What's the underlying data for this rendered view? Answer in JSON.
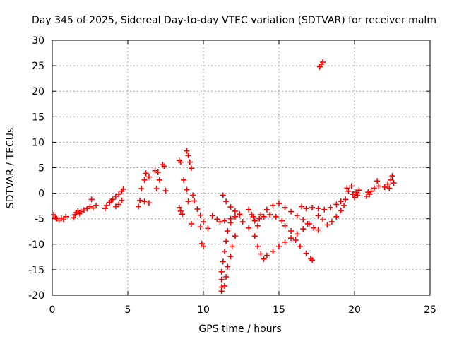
{
  "chart_data": {
    "type": "scatter",
    "title": "Day 345 of 2025, Sidereal Day-to-day VTEC variation (SDTVAR) for receiver malm",
    "xlabel": "GPS time / hours",
    "ylabel": "SDTVAR / TECUs",
    "xlim": [
      0,
      25
    ],
    "ylim": [
      -20,
      30
    ],
    "xticks": [
      0,
      5,
      10,
      15,
      20,
      25
    ],
    "yticks": [
      -20,
      -15,
      -10,
      -5,
      0,
      5,
      10,
      15,
      20,
      25,
      30
    ],
    "grid": true,
    "marker": "+",
    "color": "#ff0000",
    "series": [
      {
        "name": "SDTVAR",
        "points": [
          [
            0.1,
            -4.2
          ],
          [
            0.2,
            -4.8
          ],
          [
            0.3,
            -5.0
          ],
          [
            0.45,
            -5.3
          ],
          [
            0.6,
            -4.9
          ],
          [
            0.75,
            -5.2
          ],
          [
            0.9,
            -4.6
          ],
          [
            1.4,
            -4.8
          ],
          [
            1.5,
            -4.2
          ],
          [
            1.6,
            -3.8
          ],
          [
            1.7,
            -3.5
          ],
          [
            1.8,
            -4.0
          ],
          [
            1.9,
            -3.6
          ],
          [
            2.1,
            -3.3
          ],
          [
            2.3,
            -3.0
          ],
          [
            2.5,
            -2.6
          ],
          [
            2.7,
            -2.9
          ],
          [
            2.9,
            -2.4
          ],
          [
            2.6,
            -1.2
          ],
          [
            3.5,
            -3.0
          ],
          [
            3.6,
            -2.4
          ],
          [
            3.8,
            -1.8
          ],
          [
            4.0,
            -1.2
          ],
          [
            4.2,
            -0.6
          ],
          [
            4.4,
            -0.2
          ],
          [
            4.6,
            0.4
          ],
          [
            4.7,
            0.8
          ],
          [
            4.4,
            -2.2
          ],
          [
            4.6,
            -1.4
          ],
          [
            4.2,
            -2.6
          ],
          [
            3.9,
            -1.5
          ],
          [
            5.7,
            -2.6
          ],
          [
            5.8,
            -1.4
          ],
          [
            5.9,
            0.9
          ],
          [
            6.1,
            2.6
          ],
          [
            6.2,
            3.9
          ],
          [
            6.4,
            3.2
          ],
          [
            6.1,
            -1.6
          ],
          [
            6.4,
            -1.9
          ],
          [
            6.8,
            4.4
          ],
          [
            7.0,
            4.1
          ],
          [
            7.1,
            2.6
          ],
          [
            6.9,
            0.9
          ],
          [
            7.3,
            5.6
          ],
          [
            7.4,
            5.3
          ],
          [
            7.5,
            0.5
          ],
          [
            8.4,
            6.4
          ],
          [
            8.5,
            6.1
          ],
          [
            8.9,
            8.3
          ],
          [
            9.0,
            7.4
          ],
          [
            9.1,
            6.1
          ],
          [
            9.2,
            4.9
          ],
          [
            8.7,
            2.6
          ],
          [
            8.9,
            0.7
          ],
          [
            9.0,
            -1.6
          ],
          [
            8.4,
            -2.8
          ],
          [
            8.5,
            -3.5
          ],
          [
            8.6,
            -4.1
          ],
          [
            9.3,
            -0.4
          ],
          [
            9.4,
            -1.5
          ],
          [
            9.6,
            -3.1
          ],
          [
            9.8,
            -4.3
          ],
          [
            10.0,
            -5.6
          ],
          [
            9.2,
            -6.0
          ],
          [
            9.8,
            -6.6
          ],
          [
            10.3,
            -6.9
          ],
          [
            9.9,
            -9.9
          ],
          [
            10.0,
            -10.4
          ],
          [
            10.6,
            -4.4
          ],
          [
            10.9,
            -5.1
          ],
          [
            11.1,
            -5.6
          ],
          [
            11.4,
            -5.4
          ],
          [
            11.8,
            -5.0
          ],
          [
            12.1,
            -4.6
          ],
          [
            12.4,
            -4.2
          ],
          [
            11.3,
            -0.4
          ],
          [
            11.5,
            -1.6
          ],
          [
            11.8,
            -2.7
          ],
          [
            12.1,
            -3.5
          ],
          [
            12.4,
            -4.1
          ],
          [
            11.8,
            -5.8
          ],
          [
            11.6,
            -7.4
          ],
          [
            11.5,
            -9.4
          ],
          [
            11.4,
            -11.4
          ],
          [
            11.3,
            -13.4
          ],
          [
            11.2,
            -15.4
          ],
          [
            11.2,
            -16.9
          ],
          [
            11.2,
            -18.4
          ],
          [
            11.2,
            -19.2
          ],
          [
            12.1,
            -8.4
          ],
          [
            11.9,
            -10.4
          ],
          [
            11.8,
            -12.4
          ],
          [
            11.6,
            -14.4
          ],
          [
            11.5,
            -16.4
          ],
          [
            11.4,
            -18.2
          ],
          [
            13.0,
            -3.2
          ],
          [
            13.2,
            -4.2
          ],
          [
            13.4,
            -5.4
          ],
          [
            13.6,
            -6.4
          ],
          [
            13.4,
            -8.4
          ],
          [
            13.6,
            -10.4
          ],
          [
            13.8,
            -11.9
          ],
          [
            14.0,
            -12.9
          ],
          [
            14.2,
            -12.2
          ],
          [
            14.6,
            -11.4
          ],
          [
            15.0,
            -10.4
          ],
          [
            15.4,
            -9.6
          ],
          [
            15.8,
            -8.8
          ],
          [
            16.2,
            -8.0
          ],
          [
            16.6,
            -7.0
          ],
          [
            16.9,
            -6.0
          ],
          [
            13.8,
            -4.2
          ],
          [
            14.2,
            -3.2
          ],
          [
            14.6,
            -2.4
          ],
          [
            15.0,
            -2.0
          ],
          [
            15.4,
            -2.8
          ],
          [
            15.8,
            -3.6
          ],
          [
            16.2,
            -4.4
          ],
          [
            16.6,
            -5.2
          ],
          [
            17.0,
            -6.0
          ],
          [
            17.3,
            -6.8
          ],
          [
            15.2,
            -5.4
          ],
          [
            15.4,
            -6.4
          ],
          [
            15.8,
            -7.4
          ],
          [
            16.1,
            -9.2
          ],
          [
            16.4,
            -10.4
          ],
          [
            16.8,
            -11.8
          ],
          [
            17.1,
            -12.8
          ],
          [
            17.2,
            -13.1
          ],
          [
            12.6,
            -5.6
          ],
          [
            13.0,
            -6.8
          ],
          [
            13.3,
            -4.6
          ],
          [
            13.7,
            -5.0
          ],
          [
            14.0,
            -4.6
          ],
          [
            14.4,
            -4.2
          ],
          [
            14.8,
            -4.6
          ],
          [
            16.5,
            -2.6
          ],
          [
            16.8,
            -3.0
          ],
          [
            17.2,
            -2.8
          ],
          [
            17.6,
            -3.0
          ],
          [
            18.0,
            -3.2
          ],
          [
            18.4,
            -2.8
          ],
          [
            18.8,
            -2.2
          ],
          [
            19.1,
            -1.6
          ],
          [
            19.4,
            -1.2
          ],
          [
            17.6,
            -4.4
          ],
          [
            17.9,
            -5.2
          ],
          [
            18.2,
            -6.2
          ],
          [
            18.5,
            -5.6
          ],
          [
            18.8,
            -4.6
          ],
          [
            19.1,
            -3.4
          ],
          [
            19.3,
            -2.4
          ],
          [
            17.6,
            -7.2
          ],
          [
            17.7,
            24.8
          ],
          [
            17.8,
            25.3
          ],
          [
            17.9,
            25.7
          ],
          [
            19.5,
            1.0
          ],
          [
            19.6,
            0.4
          ],
          [
            19.8,
            1.4
          ],
          [
            19.9,
            -0.2
          ],
          [
            20.0,
            -0.8
          ],
          [
            20.1,
            0.2
          ],
          [
            20.2,
            -0.4
          ],
          [
            20.3,
            0.6
          ],
          [
            20.8,
            -0.6
          ],
          [
            20.9,
            0.2
          ],
          [
            21.0,
            -0.2
          ],
          [
            21.1,
            0.4
          ],
          [
            21.3,
            1.0
          ],
          [
            21.5,
            2.4
          ],
          [
            21.6,
            1.4
          ],
          [
            22.0,
            1.2
          ],
          [
            22.2,
            1.8
          ],
          [
            22.4,
            2.6
          ],
          [
            22.5,
            3.4
          ],
          [
            22.6,
            2.0
          ],
          [
            22.3,
            1.0
          ]
        ]
      }
    ]
  }
}
